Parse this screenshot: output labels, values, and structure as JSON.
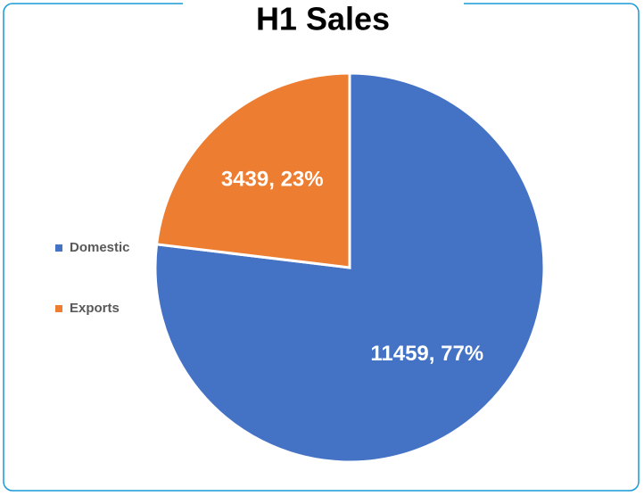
{
  "chart_data": {
    "type": "pie",
    "title": "H1 Sales",
    "categories": [
      "Domestic",
      "Exports"
    ],
    "values": [
      11459,
      3439
    ],
    "value_labels": [
      "11459, 77%",
      "3439, 23%"
    ],
    "colors": [
      "#4472c4",
      "#ed7d31"
    ],
    "legend": "left"
  }
}
